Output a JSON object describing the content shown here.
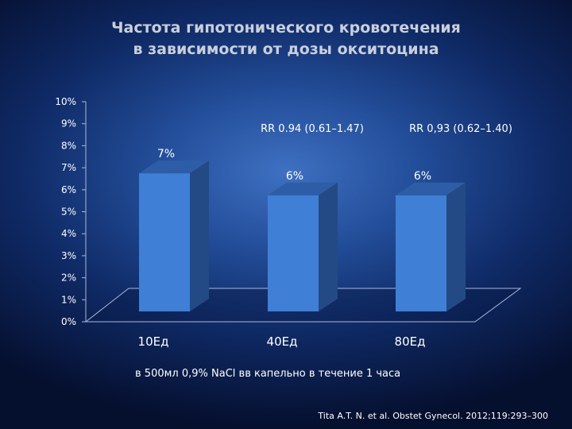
{
  "slide": {
    "title_line1": "Частота гипотонического кровотечения",
    "title_line2": "в зависимости от дозы окситоцина",
    "footnote": "в 500мл  0,9% NaCl вв капельно в течение 1 часа",
    "citation": "Tita A.T. N. et al.  Obstet Gynecol. 2012;119:293–300"
  },
  "chart_data": {
    "type": "bar",
    "categories": [
      "10Ед",
      "40Ед",
      "80Ед"
    ],
    "values": [
      7,
      6,
      6
    ],
    "value_labels": [
      "7%",
      "6%",
      "6%"
    ],
    "ylim": [
      0,
      10
    ],
    "yticks": [
      "0%",
      "1%",
      "2%",
      "3%",
      "4%",
      "5%",
      "6%",
      "7%",
      "8%",
      "9%",
      "10%"
    ],
    "annotations": [
      "RR 0.94 (0.61–1.47)",
      "RR 0,93 (0.62–1.40)"
    ],
    "grid": false,
    "bar_color": "#3f7fd6"
  }
}
